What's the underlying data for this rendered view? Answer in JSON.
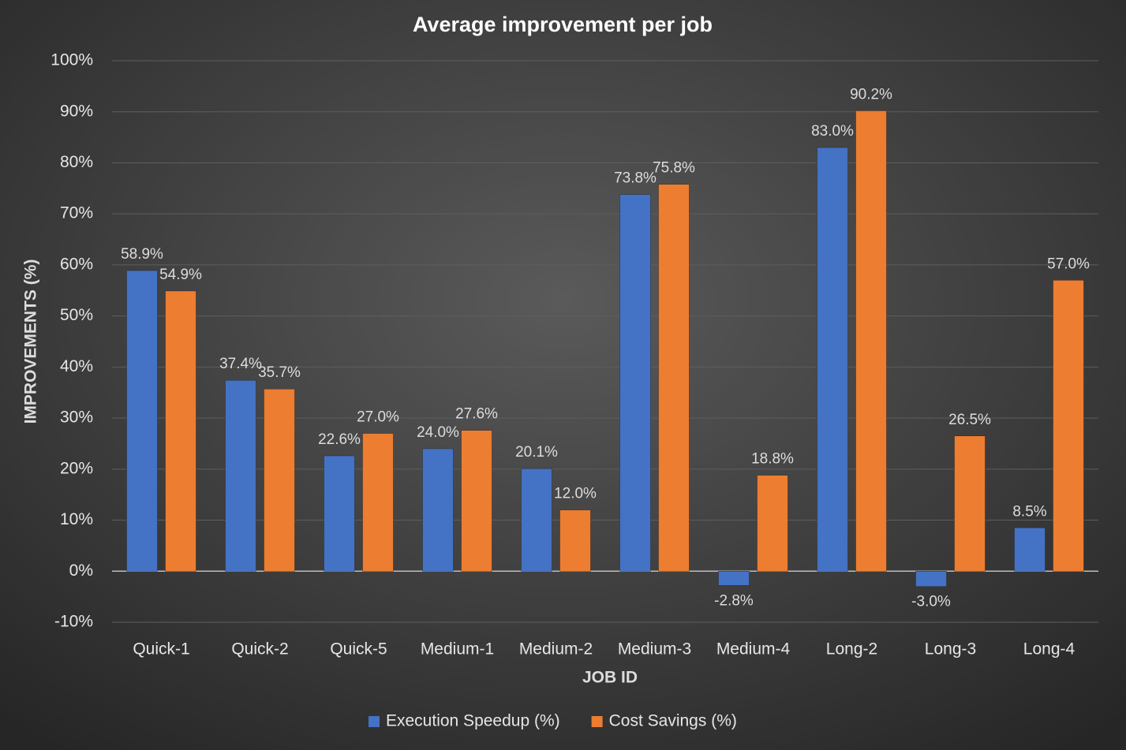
{
  "chart_data": {
    "type": "bar",
    "title": "Average improvement per job",
    "x_label": "JOB ID",
    "y_label": "IMPROVEMENTS (%)",
    "categories": [
      "Quick-1",
      "Quick-2",
      "Quick-5",
      "Medium-1",
      "Medium-2",
      "Medium-3",
      "Medium-4",
      "Long-2",
      "Long-3",
      "Long-4"
    ],
    "series": [
      {
        "name": "Execution Speedup (%)",
        "color": "#4472c4",
        "values": [
          58.9,
          37.4,
          22.6,
          24.0,
          20.1,
          73.8,
          -2.8,
          83.0,
          -3.0,
          8.5
        ],
        "value_labels": [
          "58.9%",
          "37.4%",
          "22.6%",
          "24.0%",
          "20.1%",
          "73.8%",
          "-2.8%",
          "83.0%",
          "-3.0%",
          "8.5%"
        ]
      },
      {
        "name": "Cost Savings (%)",
        "color": "#ed7d31",
        "values": [
          54.9,
          35.7,
          27.0,
          27.6,
          12.0,
          75.8,
          18.8,
          90.2,
          26.5,
          57.0
        ],
        "value_labels": [
          "54.9%",
          "35.7%",
          "27.0%",
          "27.6%",
          "12.0%",
          "75.8%",
          "18.8%",
          "90.2%",
          "26.5%",
          "57.0%"
        ]
      }
    ],
    "ylim": [
      -10,
      100
    ],
    "yticks": [
      {
        "value": -10,
        "label": "-10%"
      },
      {
        "value": 0,
        "label": "0%"
      },
      {
        "value": 10,
        "label": "10%"
      },
      {
        "value": 20,
        "label": "20%"
      },
      {
        "value": 30,
        "label": "30%"
      },
      {
        "value": 40,
        "label": "40%"
      },
      {
        "value": 50,
        "label": "50%"
      },
      {
        "value": 60,
        "label": "60%"
      },
      {
        "value": 70,
        "label": "70%"
      },
      {
        "value": 80,
        "label": "80%"
      },
      {
        "value": 90,
        "label": "90%"
      },
      {
        "value": 100,
        "label": "100%"
      }
    ],
    "grid": true,
    "legend": "bottom"
  }
}
